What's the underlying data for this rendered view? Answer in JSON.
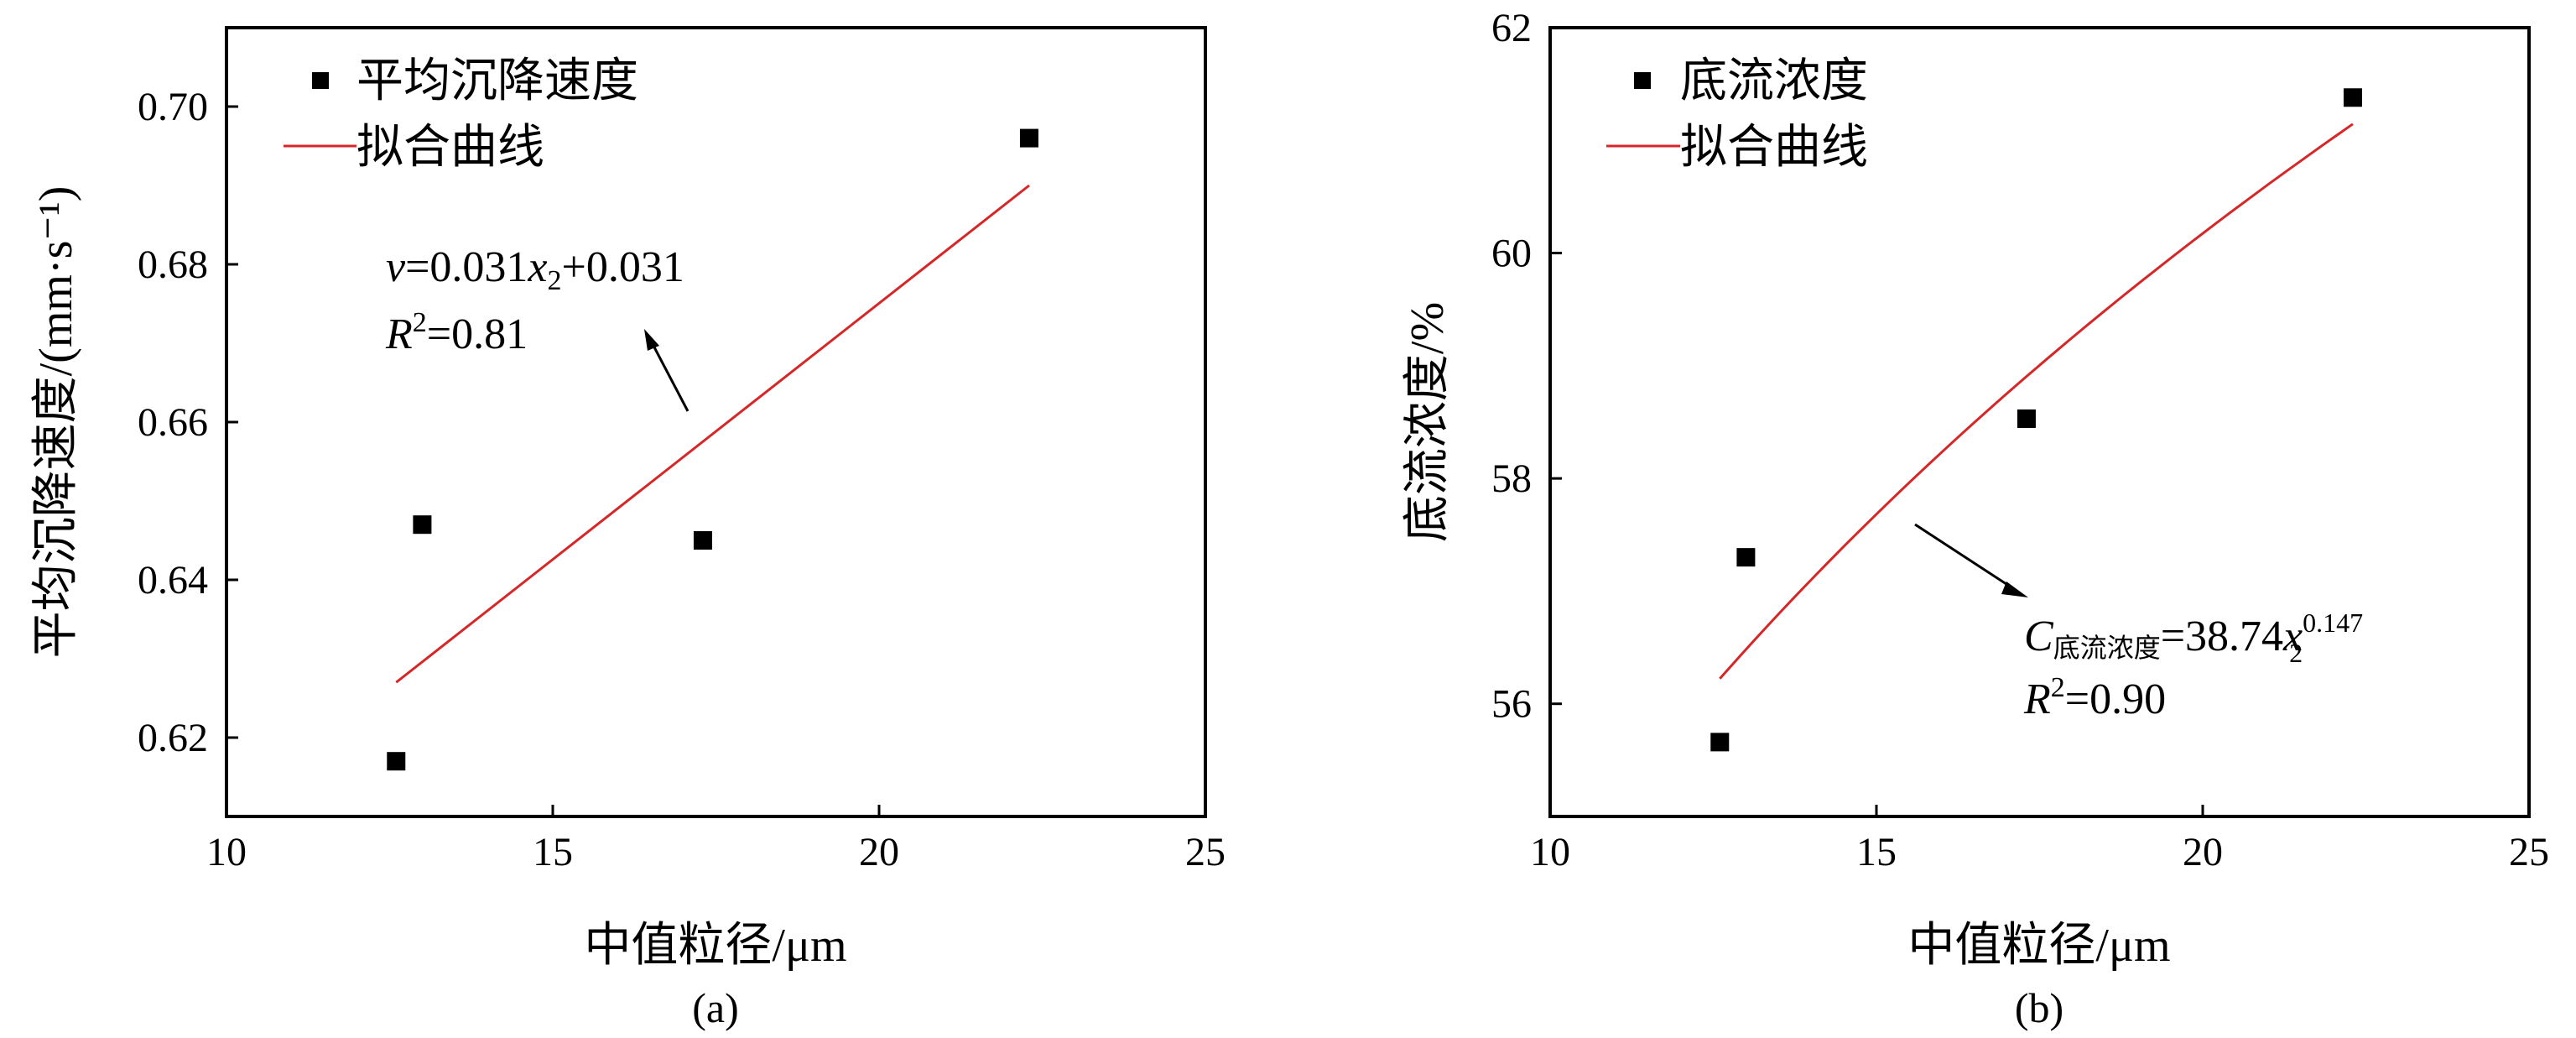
{
  "colors": {
    "fit_line": "#d62728",
    "points": "#000000",
    "axes": "#000000"
  },
  "chart_data": [
    {
      "type": "scatter",
      "caption": "(a)",
      "xlabel": "中值粒径/μm",
      "ylabel": "平均沉降速度/(mm·s⁻¹)",
      "xlim": [
        10,
        25
      ],
      "ylim": [
        0.61,
        0.71
      ],
      "xticks": [
        10,
        15,
        20,
        25
      ],
      "yticks": [
        0.62,
        0.64,
        0.66,
        0.68,
        0.7
      ],
      "ytick_labels": [
        "0.62",
        "0.64",
        "0.66",
        "0.68",
        "0.70"
      ],
      "legend": {
        "placement": "top-left",
        "points_label": "平均沉降速度",
        "line_label": "拟合曲线"
      },
      "series": [
        {
          "name": "平均沉降速度",
          "x": [
            12.6,
            13.0,
            17.3,
            22.3
          ],
          "y": [
            0.617,
            0.647,
            0.645,
            0.696
          ]
        }
      ],
      "fit": {
        "name": "拟合曲线",
        "x": [
          12.6,
          22.3
        ],
        "y": [
          0.627,
          0.69
        ]
      },
      "equation": {
        "lhs": "v",
        "body": "=0.031",
        "var": "x",
        "sub": "2",
        "tail": "+0.031"
      },
      "r2": {
        "sym": "R",
        "sup": "2",
        "val": "=0.81"
      }
    },
    {
      "type": "scatter",
      "caption": "(b)",
      "xlabel": "中值粒径/μm",
      "ylabel": "底流浓度/%",
      "xlim": [
        10,
        25
      ],
      "ylim": [
        55,
        62
      ],
      "xticks": [
        10,
        15,
        20,
        25
      ],
      "yticks": [
        56,
        58,
        60,
        62
      ],
      "ytick_labels": [
        "56",
        "58",
        "60",
        "62"
      ],
      "legend": {
        "placement": "top-left",
        "points_label": "底流浓度",
        "line_label": "拟合曲线"
      },
      "series": [
        {
          "name": "底流浓度",
          "x": [
            12.6,
            13.0,
            17.3,
            22.3
          ],
          "y": [
            55.66,
            57.3,
            58.53,
            61.38
          ]
        }
      ],
      "fit": {
        "name": "拟合曲线",
        "model": "power",
        "coef": 38.74,
        "exp": 0.147,
        "x_range": [
          12.6,
          22.3
        ]
      },
      "equation": {
        "lhs": "C",
        "lhs_sub": "底流浓度",
        "body": "=38.74",
        "var": "x",
        "sub": "2",
        "sup": "0.147"
      },
      "r2": {
        "sym": "R",
        "sup": "2",
        "val": "=0.90"
      }
    }
  ]
}
